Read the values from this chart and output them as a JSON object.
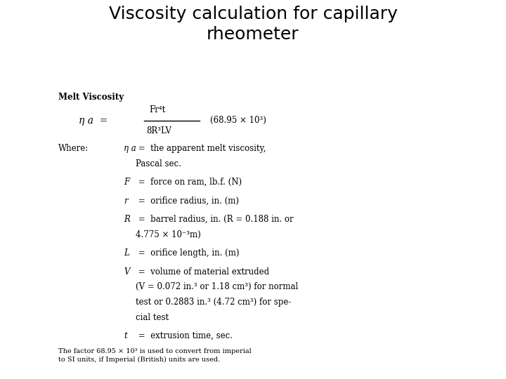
{
  "title": "Viscosity calculation for capillary\nrheometer",
  "title_fontsize": 18,
  "bg_color": "#ffffff",
  "text_color": "#000000",
  "section_bold": "Melt Viscosity",
  "formula_eta": "η a  =",
  "formula_numerator": "Fr⁴t",
  "formula_denominator": "8R³LV",
  "formula_factor": "(68.95 × 10³)",
  "where_lines": [
    [
      "η a",
      " =  the apparent melt viscosity,"
    ],
    [
      "",
      "Pascal sec."
    ],
    [
      "F",
      " =  force on ram, lb.f. (N)"
    ],
    [
      "r",
      " =  orifice radius, in. (m)"
    ],
    [
      "R",
      " =  barrel radius, in. (R = 0.188 in. or"
    ],
    [
      "",
      "4.775 × 10⁻³m)"
    ],
    [
      "L",
      " =  orifice length, in. (m)"
    ],
    [
      "V",
      " =  volume of material extruded"
    ],
    [
      "",
      "(V = 0.072 in.³ or 1.18 cm³) for normal"
    ],
    [
      "",
      "test or 0.2883 in.³ (4.72 cm³) for spe-"
    ],
    [
      "",
      "cial test"
    ],
    [
      "t",
      " =  extrusion time, sec."
    ]
  ],
  "footer": "The factor 68.95 × 10³ is used to convert from imperial\nto SI units, if Imperial (British) units are used."
}
